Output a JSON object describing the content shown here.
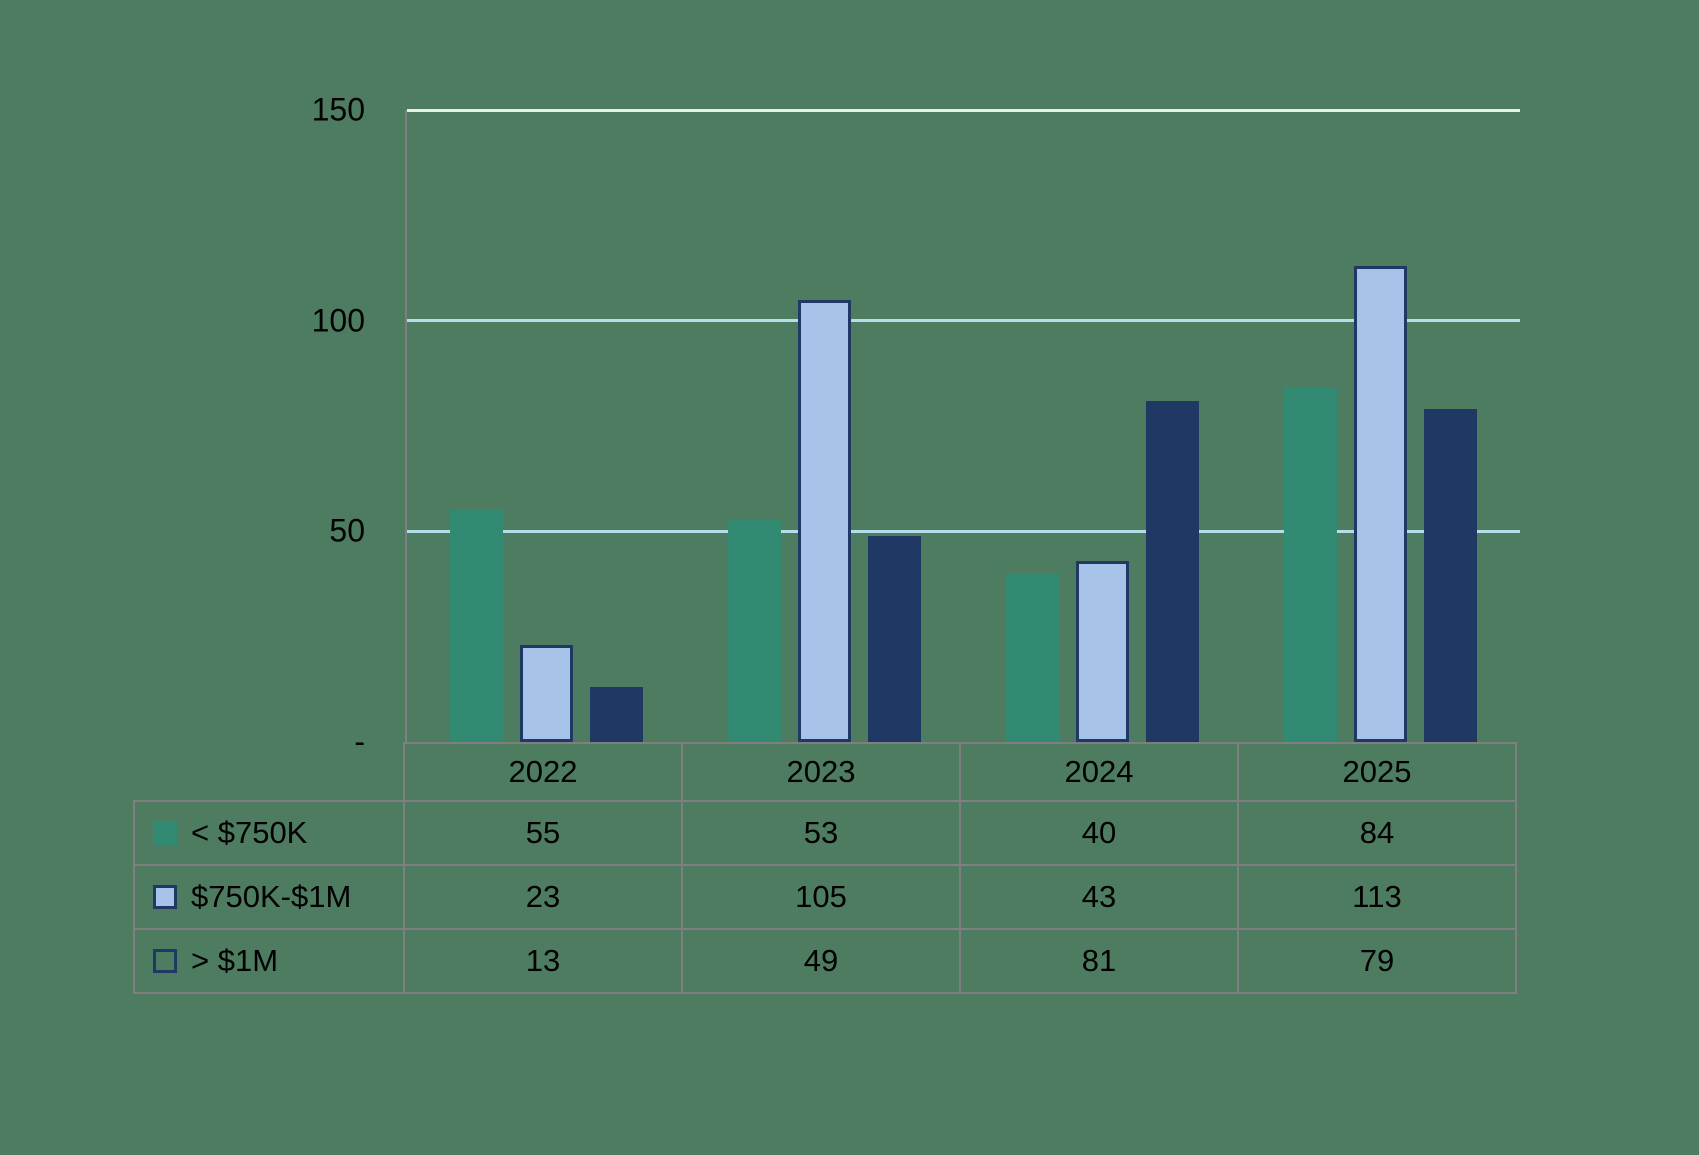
{
  "chart_data": {
    "type": "bar",
    "title": "",
    "categories": [
      "2022",
      "2023",
      "2024",
      "2025"
    ],
    "series": [
      {
        "name": "< $750K",
        "values": [
          55,
          53,
          40,
          84
        ],
        "color": "#338a73",
        "bar_border": "none",
        "swatch_fill": "#338a73",
        "swatch_border": "none"
      },
      {
        "name": "$750K-$1M",
        "values": [
          23,
          105,
          43,
          113
        ],
        "color": "#a8c3ea",
        "bar_border": "#1f3864",
        "swatch_fill": "#a8c3ea",
        "swatch_border": "#1f3864"
      },
      {
        "name": "> $1M",
        "values": [
          13,
          49,
          81,
          79
        ],
        "color": "#1f3864",
        "bar_border": "none",
        "swatch_fill": "transparent",
        "swatch_border": "#1f3864"
      }
    ],
    "ylim": [
      0,
      150
    ],
    "y_ticks": [
      "150",
      "100",
      "50",
      "-"
    ],
    "gridlines": [
      150,
      100,
      50
    ],
    "grid": true,
    "legend_position": "table-left",
    "xlabel": "",
    "ylabel": ""
  },
  "colors": {
    "background": "#4d7c61",
    "axis_gray": "#7f7f7f",
    "gridline_blue": "#b3dfe8",
    "gridline_top": "#e4efe8",
    "text": "#000000"
  }
}
